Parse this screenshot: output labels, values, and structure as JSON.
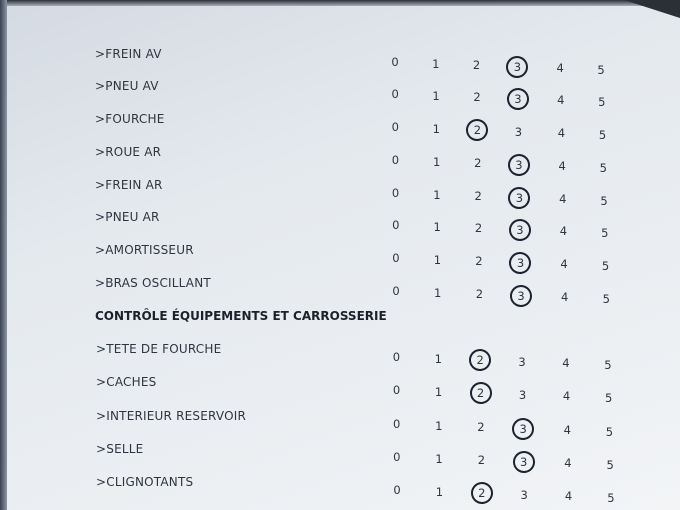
{
  "scale": [
    "0",
    "1",
    "2",
    "3",
    "4",
    "5"
  ],
  "rows_group1": [
    {
      "label": ">FREIN AV",
      "selected": 3
    },
    {
      "label": ">PNEU AV",
      "selected": 3
    },
    {
      "label": ">FOURCHE",
      "selected": 2
    },
    {
      "label": ">ROUE AR",
      "selected": 3
    },
    {
      "label": ">FREIN AR",
      "selected": 3
    },
    {
      "label": ">PNEU AR",
      "selected": 3
    },
    {
      "label": ">AMORTISSEUR",
      "selected": 3
    },
    {
      "label": ">BRAS OSCILLANT",
      "selected": 3
    }
  ],
  "section_title": "CONTRÔLE ÉQUIPEMENTS ET CARROSSERIE",
  "rows_group2": [
    {
      "label": ">TETE DE FOURCHE",
      "selected": 2
    },
    {
      "label": ">CACHES",
      "selected": 2
    },
    {
      "label": ">INTERIEUR RESERVOIR",
      "selected": 3
    },
    {
      "label": ">SELLE",
      "selected": 3
    },
    {
      "label": ">CLIGNOTANTS",
      "selected": 2
    }
  ],
  "colors": {
    "paper": "#e6eaee",
    "ink": "#2f3540",
    "pen": "#1d2230"
  }
}
